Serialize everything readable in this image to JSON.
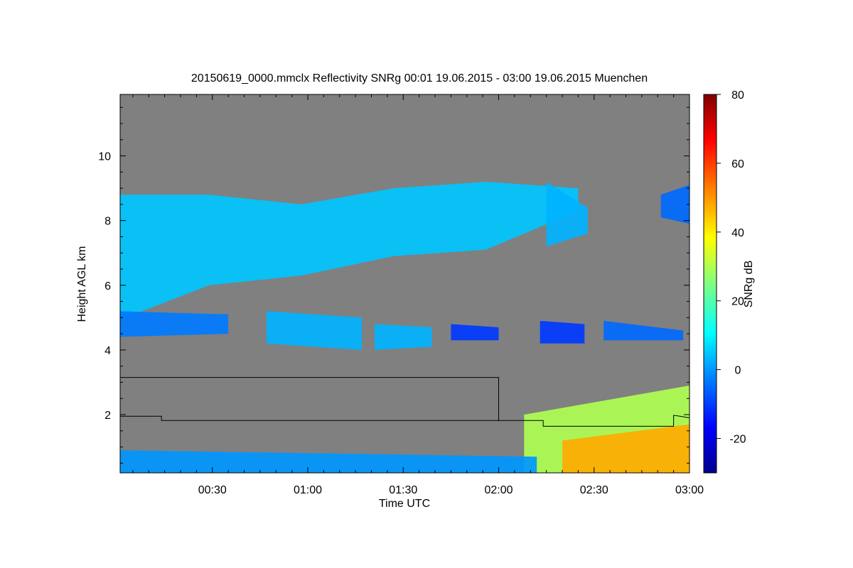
{
  "chart_data": {
    "type": "heatmap",
    "title": "20150619_0000.mmclx Reflectivity SNRg   00:01 19.06.2015 - 03:00 19.06.2015 Muenchen",
    "xlabel": "Time UTC",
    "ylabel": "Height AGL km",
    "colorbar_label": "SNRg dB",
    "x_range_minutes": [
      1,
      180
    ],
    "y_range_km": [
      0.2,
      11.9
    ],
    "x_ticks": [
      {
        "minute": 30,
        "label": "00:30"
      },
      {
        "minute": 60,
        "label": "01:00"
      },
      {
        "minute": 90,
        "label": "01:30"
      },
      {
        "minute": 120,
        "label": "02:00"
      },
      {
        "minute": 150,
        "label": "02:30"
      },
      {
        "minute": 180,
        "label": "03:00"
      }
    ],
    "y_ticks": [
      {
        "value": 2,
        "label": "2"
      },
      {
        "value": 4,
        "label": "4"
      },
      {
        "value": 6,
        "label": "6"
      },
      {
        "value": 8,
        "label": "8"
      },
      {
        "value": 10,
        "label": "10"
      }
    ],
    "colorbar_range": [
      -30,
      80
    ],
    "colorbar_ticks": [
      {
        "value": -20,
        "label": "-20"
      },
      {
        "value": 0,
        "label": "0"
      },
      {
        "value": 20,
        "label": "20"
      },
      {
        "value": 40,
        "label": "40"
      },
      {
        "value": 60,
        "label": "60"
      },
      {
        "value": 80,
        "label": "80"
      }
    ],
    "colormap": [
      "#00008f",
      "#0000ff",
      "#0080ff",
      "#00ffff",
      "#80ff80",
      "#ffff00",
      "#ff8000",
      "#ff0000",
      "#800000"
    ],
    "background_color": "#808080",
    "echo_regions": [
      {
        "name": "upper cloud layer",
        "minutes": [
          0,
          145
        ],
        "base_km": [
          4.9,
          6.0,
          6.3,
          6.9,
          7.1,
          8.3
        ],
        "top_km": [
          8.8,
          8.8,
          8.5,
          9.0,
          9.2,
          9.0
        ],
        "snr_db": 5
      },
      {
        "name": "upper cloud fall streaks",
        "minutes": [
          135,
          148
        ],
        "base_km": [
          7.2,
          7.6
        ],
        "top_km": [
          9.2,
          8.4
        ],
        "snr_db": 3
      },
      {
        "name": "upper right patch",
        "minutes": [
          171,
          180
        ],
        "base_km": [
          8.1,
          7.9
        ],
        "top_km": [
          8.8,
          9.1
        ],
        "snr_db": -5
      },
      {
        "name": "mid patch 1",
        "minutes": [
          0,
          35
        ],
        "base_km": [
          4.4,
          4.5
        ],
        "top_km": [
          5.2,
          5.1
        ],
        "snr_db": -3
      },
      {
        "name": "mid patch 2",
        "minutes": [
          47,
          77
        ],
        "base_km": [
          4.2,
          4.0
        ],
        "top_km": [
          5.2,
          5.0
        ],
        "snr_db": 3
      },
      {
        "name": "mid patch 3",
        "minutes": [
          81,
          99
        ],
        "base_km": [
          4.0,
          4.1
        ],
        "top_km": [
          4.8,
          4.7
        ],
        "snr_db": 3
      },
      {
        "name": "mid patch 4",
        "minutes": [
          105,
          120
        ],
        "base_km": [
          4.3,
          4.3
        ],
        "top_km": [
          4.8,
          4.7
        ],
        "snr_db": -10
      },
      {
        "name": "mid patch 5",
        "minutes": [
          133,
          147
        ],
        "base_km": [
          4.2,
          4.2
        ],
        "top_km": [
          4.9,
          4.8
        ],
        "snr_db": -10
      },
      {
        "name": "mid patch 6",
        "minutes": [
          153,
          178
        ],
        "base_km": [
          4.3,
          4.3
        ],
        "top_km": [
          4.9,
          4.6
        ],
        "snr_db": -5
      },
      {
        "name": "low precip anvil",
        "minutes": [
          128,
          180
        ],
        "base_km": [
          0.2,
          0.2
        ],
        "top_km": [
          2.0,
          2.9
        ],
        "snr_db": 30
      },
      {
        "name": "low precip core",
        "minutes": [
          140,
          180
        ],
        "base_km": [
          0.2,
          0.2
        ],
        "top_km": [
          1.2,
          1.7
        ],
        "snr_db": 48
      },
      {
        "name": "near ground clutter",
        "minutes": [
          0,
          132
        ],
        "base_km": [
          0.2,
          0.2
        ],
        "top_km": [
          0.9,
          0.7
        ],
        "snr_db": 0
      }
    ],
    "boundary_lines": [
      {
        "name": "black line upper",
        "points": [
          [
            0,
            3.15
          ],
          [
            120,
            3.15
          ],
          [
            120,
            1.8
          ]
        ]
      },
      {
        "name": "black line lower",
        "points": [
          [
            0,
            1.95
          ],
          [
            14,
            1.95
          ],
          [
            14,
            1.82
          ],
          [
            134,
            1.82
          ],
          [
            134,
            1.64
          ],
          [
            175,
            1.64
          ],
          [
            175,
            1.98
          ],
          [
            177,
            1.95
          ],
          [
            180,
            1.9
          ]
        ]
      }
    ]
  }
}
